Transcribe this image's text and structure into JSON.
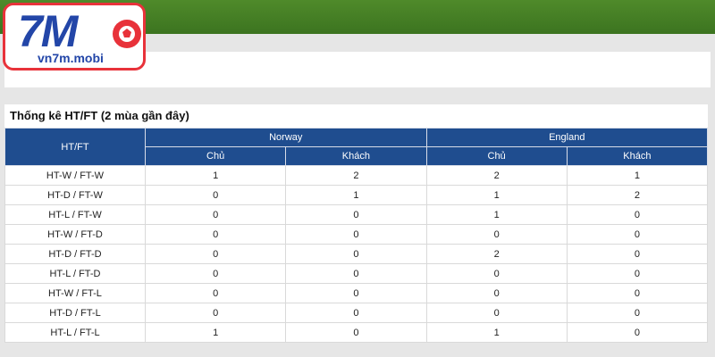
{
  "logo": {
    "brand": "7M",
    "site": "vn7m.mobi"
  },
  "section": {
    "title": "Thống kê HT/FT (2 mùa gần đây)"
  },
  "table": {
    "header": {
      "first": "HT/FT",
      "teams": [
        "Norway",
        "England"
      ],
      "sub": [
        "Chủ",
        "Khách",
        "Chủ",
        "Khách"
      ]
    },
    "rows": [
      [
        "HT-W / FT-W",
        1,
        2,
        2,
        1
      ],
      [
        "HT-D / FT-W",
        0,
        1,
        1,
        2
      ],
      [
        "HT-L / FT-W",
        0,
        0,
        1,
        0
      ],
      [
        "HT-W / FT-D",
        0,
        0,
        0,
        0
      ],
      [
        "HT-D / FT-D",
        0,
        0,
        2,
        0
      ],
      [
        "HT-L / FT-D",
        0,
        0,
        0,
        0
      ],
      [
        "HT-W / FT-L",
        0,
        0,
        0,
        0
      ],
      [
        "HT-D / FT-L",
        0,
        0,
        0,
        0
      ],
      [
        "HT-L / FT-L",
        1,
        0,
        1,
        0
      ]
    ]
  }
}
